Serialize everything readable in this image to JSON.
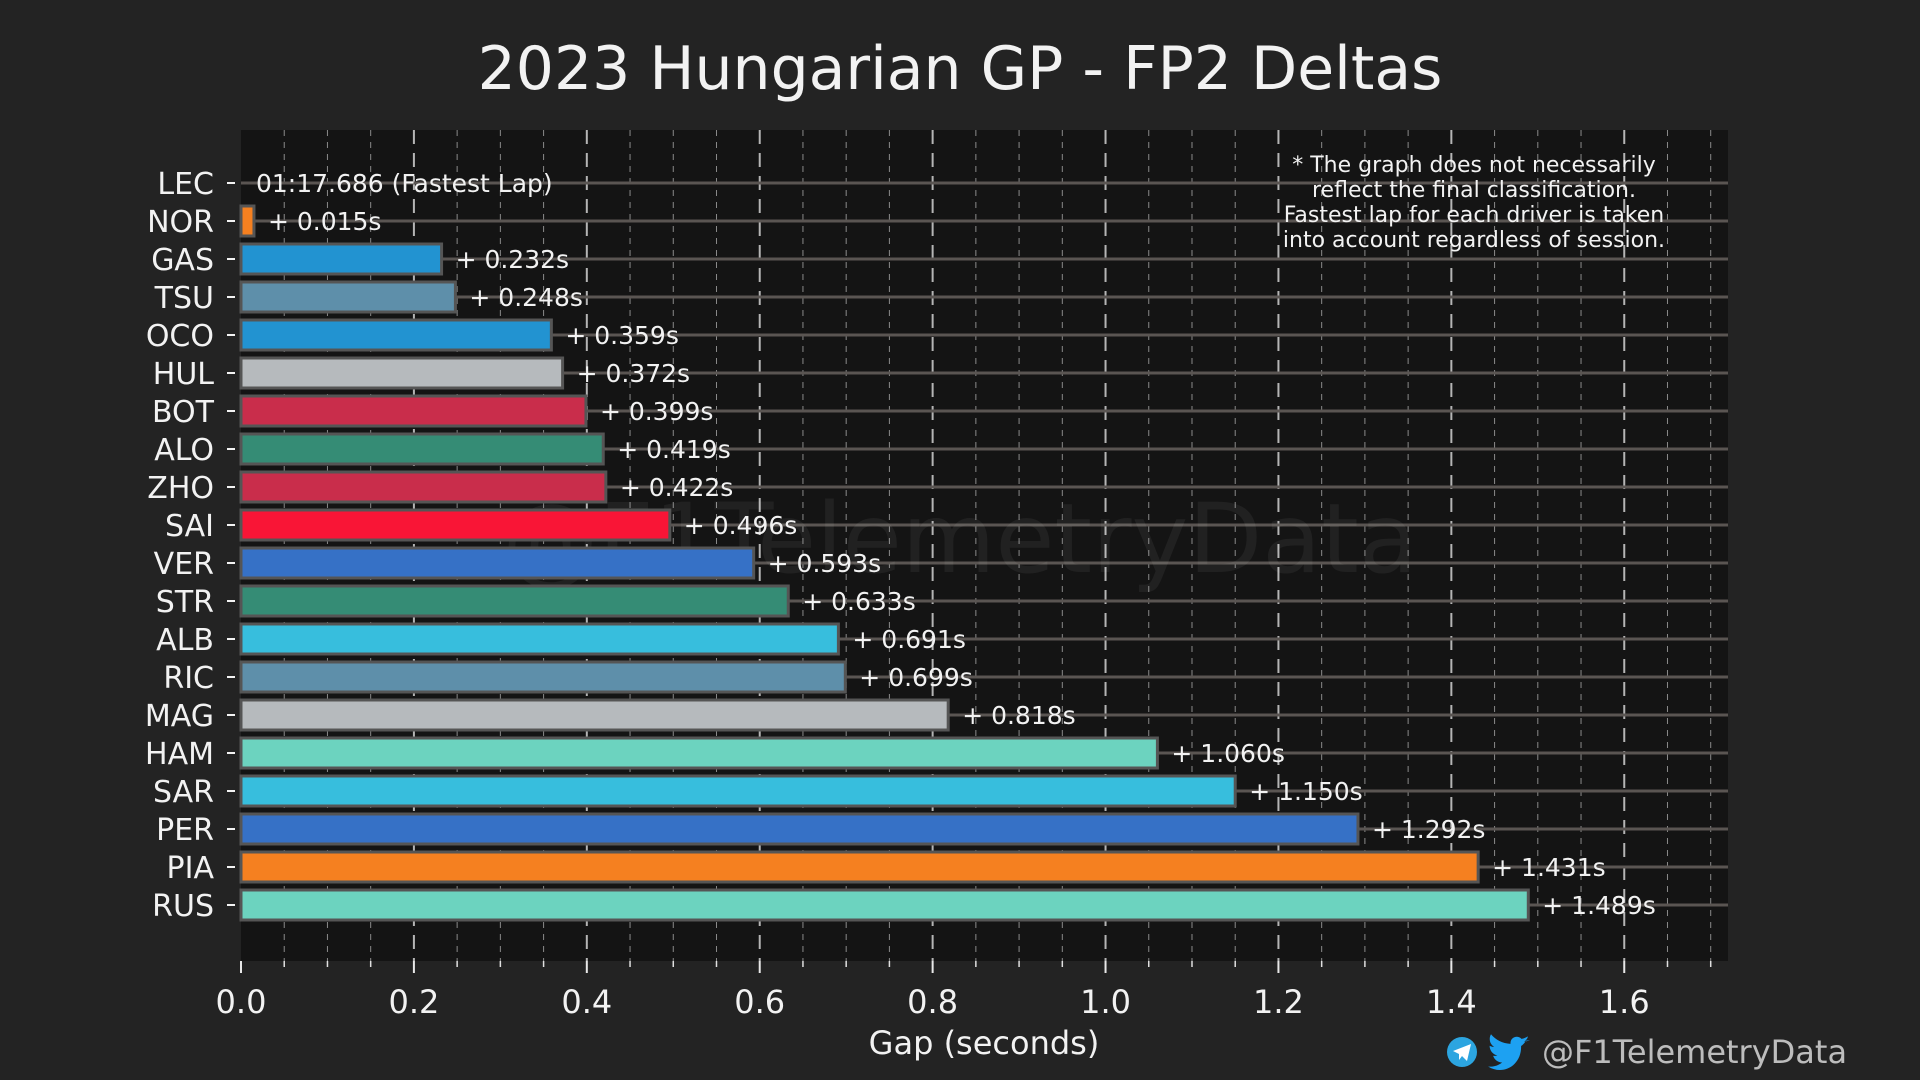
{
  "chart_data": {
    "type": "bar",
    "orientation": "horizontal",
    "title": "2023 Hungarian GP - FP2 Deltas",
    "xlabel": "Gap (seconds)",
    "ylabel": "",
    "xlim": [
      0,
      1.72
    ],
    "xticks": [
      0.0,
      0.2,
      0.4,
      0.6,
      0.8,
      1.0,
      1.2,
      1.4,
      1.6
    ],
    "xtick_labels": [
      "0.0",
      "0.2",
      "0.4",
      "0.6",
      "0.8",
      "1.0",
      "1.2",
      "1.4",
      "1.6"
    ],
    "minor_tick_step": 0.05,
    "grid": true,
    "categories": [
      "LEC",
      "NOR",
      "GAS",
      "TSU",
      "OCO",
      "HUL",
      "BOT",
      "ALO",
      "ZHO",
      "SAI",
      "VER",
      "STR",
      "ALB",
      "RIC",
      "MAG",
      "HAM",
      "SAR",
      "PER",
      "PIA",
      "RUS"
    ],
    "values": [
      0.0,
      0.015,
      0.232,
      0.248,
      0.359,
      0.372,
      0.399,
      0.419,
      0.422,
      0.496,
      0.593,
      0.633,
      0.691,
      0.699,
      0.818,
      1.06,
      1.15,
      1.292,
      1.431,
      1.489
    ],
    "value_labels": [
      "01:17.686 (Fastest Lap)",
      "+ 0.015s",
      "+ 0.232s",
      "+ 0.248s",
      "+ 0.359s",
      "+ 0.372s",
      "+ 0.399s",
      "+ 0.419s",
      "+ 0.422s",
      "+ 0.496s",
      "+ 0.593s",
      "+ 0.633s",
      "+ 0.691s",
      "+ 0.699s",
      "+ 0.818s",
      "+ 1.060s",
      "+ 1.150s",
      "+ 1.292s",
      "+ 1.431s",
      "+ 1.489s"
    ],
    "colors": [
      "#F91536",
      "#F58020",
      "#2293D1",
      "#5E8FAA",
      "#2293D1",
      "#B6BABD",
      "#C92D4B",
      "#358C75",
      "#C92D4B",
      "#F91536",
      "#3671C6",
      "#358C75",
      "#37BEDD",
      "#5E8FAA",
      "#B6BABD",
      "#6CD3BF",
      "#37BEDD",
      "#3671C6",
      "#F58020",
      "#6CD3BF"
    ],
    "note": [
      "* The graph does not necessarily",
      "reflect the final classification.",
      "Fastest lap for each driver is taken",
      "into account regardless of session."
    ]
  },
  "watermark": "@F1TelemetryData",
  "footer": {
    "handle": "@F1TelemetryData",
    "icons": [
      "telegram-icon",
      "twitter-icon"
    ],
    "telegram_color": "#2CA5E0",
    "twitter_color": "#1DA1F2"
  },
  "theme": {
    "background": "#232323",
    "plot_background": "#141414",
    "grid_color": "#5a5552",
    "bar_edge": "#555555"
  }
}
